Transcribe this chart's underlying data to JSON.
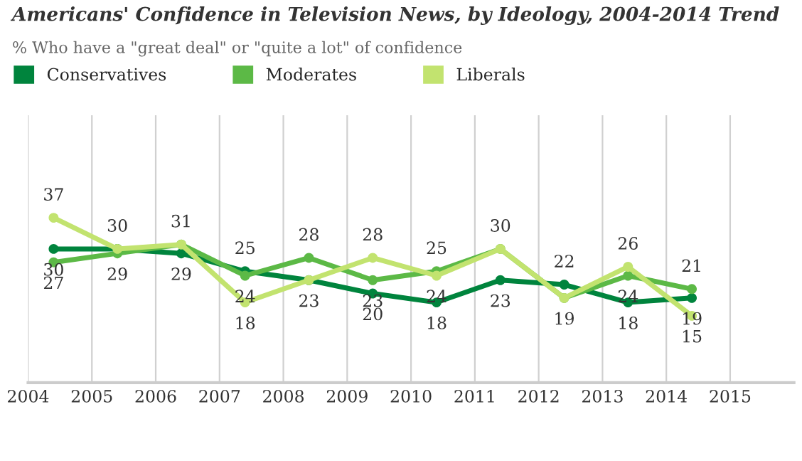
{
  "chart_data": {
    "type": "line",
    "title": "Americans' Confidence in Television News, by Ideology, 2004-2014 Trend",
    "subtitle": "% Who have a \"great deal\" or \"quite a lot\" of confidence",
    "x": [
      2004.4,
      2005.4,
      2006.4,
      2007.4,
      2008.4,
      2009.4,
      2010.4,
      2011.4,
      2012.4,
      2013.4,
      2014.4
    ],
    "series": [
      {
        "name": "Conservatives",
        "color": "#00843d",
        "values": [
          30,
          30,
          29,
          25,
          23,
          20,
          18,
          23,
          22,
          18,
          19
        ],
        "value_labels": [
          "30",
          "30",
          "29",
          "25",
          "23",
          "20",
          "18",
          "23",
          "22",
          "18",
          "19"
        ]
      },
      {
        "name": "Moderates",
        "color": "#5cb946",
        "values": [
          27,
          29,
          31,
          24,
          28,
          23,
          25,
          30,
          19,
          24,
          21
        ],
        "value_labels": [
          "27",
          "29",
          null,
          "24",
          "28",
          "23",
          "25",
          null,
          null,
          "24",
          "21"
        ]
      },
      {
        "name": "Liberals",
        "color": "#c2e36f",
        "values": [
          37,
          30,
          31,
          18,
          23,
          28,
          24,
          30,
          19,
          26,
          15
        ],
        "value_labels": [
          "37",
          null,
          "31",
          "18",
          null,
          "28",
          "24",
          "30",
          "19",
          "26",
          "15"
        ]
      }
    ],
    "xlim": [
      2004,
      2016
    ],
    "xticks": [
      2004,
      2005,
      2006,
      2007,
      2008,
      2009,
      2010,
      2011,
      2012,
      2013,
      2014,
      2015
    ],
    "ylim": [
      0,
      60
    ],
    "tick_labels": "x",
    "grid": "x",
    "legend": "top left",
    "marker": "circle",
    "line_style": "solid"
  }
}
